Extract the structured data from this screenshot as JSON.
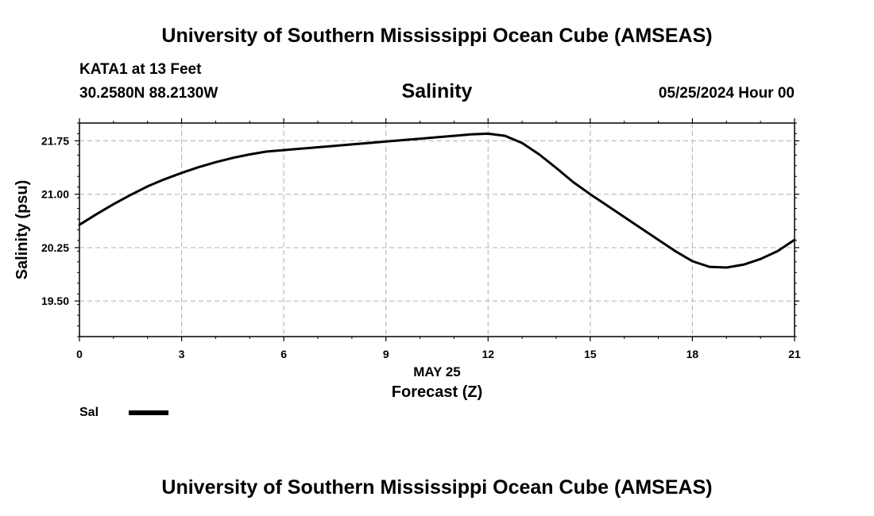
{
  "header": {
    "title": "University of Southern Mississippi Ocean Cube (AMSEAS)",
    "station_name": "KATA1 at 13 Feet",
    "station_coords": "30.2580N  88.2130W",
    "chart_title": "Salinity",
    "datetime": "05/25/2024 Hour 00"
  },
  "footer": {
    "title": "University of Southern Mississippi Ocean Cube (AMSEAS)"
  },
  "legend": {
    "label": "Sal",
    "color": "#000000"
  },
  "chart_data": {
    "type": "line",
    "title": "Salinity",
    "xlabel": "Forecast (Z)",
    "x_date_label": "MAY 25",
    "ylabel": "Salinity (psu)",
    "xlim": [
      0,
      21
    ],
    "ylim": [
      19.0,
      22.0
    ],
    "x_ticks": [
      0,
      3,
      6,
      9,
      12,
      15,
      18,
      21
    ],
    "x_tick_labels": [
      "0",
      "3",
      "6",
      "9",
      "12",
      "15",
      "18",
      "21"
    ],
    "y_ticks": [
      19.5,
      20.25,
      21.0,
      21.75
    ],
    "y_tick_labels": [
      "19.50",
      "20.25",
      "21.00",
      "21.75"
    ],
    "grid": true,
    "legend_position": "bottom-left",
    "series": [
      {
        "name": "Sal",
        "color": "#000000",
        "x": [
          0,
          0.5,
          1,
          1.5,
          2,
          2.5,
          3,
          3.5,
          4,
          4.5,
          5,
          5.5,
          6,
          6.5,
          7,
          7.5,
          8,
          8.5,
          9,
          9.5,
          10,
          10.5,
          11,
          11.5,
          12,
          12.5,
          13,
          13.5,
          14,
          14.5,
          15,
          15.5,
          16,
          16.5,
          17,
          17.5,
          18,
          18.5,
          19,
          19.5,
          20,
          20.5,
          21
        ],
        "y": [
          20.57,
          20.72,
          20.86,
          20.99,
          21.11,
          21.21,
          21.3,
          21.38,
          21.45,
          21.51,
          21.56,
          21.6,
          21.62,
          21.64,
          21.66,
          21.68,
          21.7,
          21.72,
          21.74,
          21.76,
          21.78,
          21.8,
          21.82,
          21.84,
          21.85,
          21.82,
          21.72,
          21.56,
          21.37,
          21.17,
          21.0,
          20.84,
          20.68,
          20.52,
          20.36,
          20.2,
          20.06,
          19.98,
          19.97,
          20.01,
          20.09,
          20.2,
          20.36
        ]
      }
    ]
  }
}
